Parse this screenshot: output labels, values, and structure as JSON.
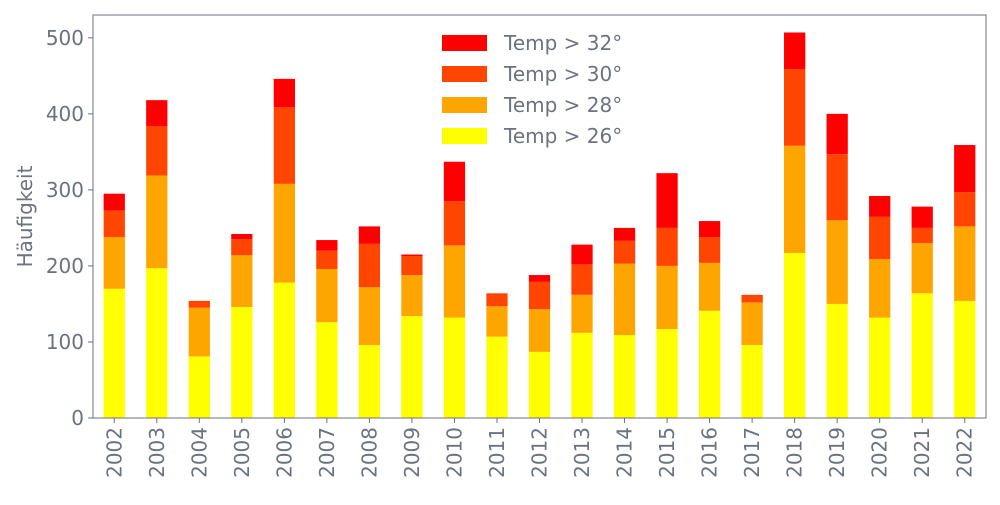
{
  "chart_data": {
    "type": "bar",
    "stacked": true,
    "title": "",
    "xlabel": "",
    "ylabel": "Häufigkeit",
    "ylim": [
      0,
      530
    ],
    "yticks": [
      0,
      100,
      200,
      300,
      400,
      500
    ],
    "grid": false,
    "legend_position": "top-center",
    "axis_color": "#6b7280",
    "categories": [
      "2002",
      "2003",
      "2004",
      "2005",
      "2006",
      "2007",
      "2008",
      "2009",
      "2010",
      "2011",
      "2012",
      "2013",
      "2014",
      "2015",
      "2016",
      "2017",
      "2018",
      "2019",
      "2020",
      "2021",
      "2022"
    ],
    "series": [
      {
        "name": "Temp > 26°",
        "color": "#ffff00",
        "values": [
          170,
          197,
          81,
          146,
          178,
          126,
          96,
          134,
          132,
          107,
          87,
          112,
          109,
          117,
          141,
          96,
          217,
          150,
          132,
          164,
          154
        ]
      },
      {
        "name": "Temp > 28°",
        "color": "#ffa500",
        "values": [
          68,
          122,
          64,
          68,
          130,
          70,
          76,
          54,
          95,
          40,
          56,
          50,
          94,
          83,
          63,
          56,
          141,
          110,
          77,
          66,
          98
        ]
      },
      {
        "name": "Temp > 30°",
        "color": "#ff4500",
        "values": [
          35,
          65,
          9,
          21,
          101,
          24,
          57,
          25,
          58,
          17,
          36,
          40,
          30,
          50,
          34,
          10,
          101,
          87,
          56,
          20,
          45
        ]
      },
      {
        "name": "Temp > 32°",
        "color": "#ff0000",
        "values": [
          22,
          34,
          0,
          7,
          37,
          14,
          23,
          2,
          52,
          0,
          9,
          26,
          17,
          72,
          21,
          0,
          48,
          53,
          27,
          28,
          62
        ]
      }
    ]
  }
}
